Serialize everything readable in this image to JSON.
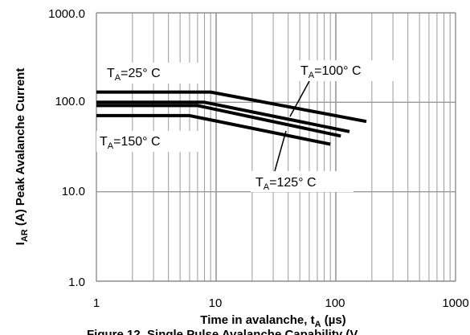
{
  "chart_data": {
    "type": "line",
    "x_scale": "log",
    "y_scale": "log",
    "xlim": [
      1,
      1000
    ],
    "ylim": [
      1.0,
      1000.0
    ],
    "grid": true,
    "legend": "none",
    "xlabel": {
      "main": "Time in avalanche, t",
      "sub": "A",
      "unit": " (µs)"
    },
    "ylabel": {
      "pre": "I",
      "sub": "AR",
      "main": " (A) Peak Avalanche Current"
    },
    "x_ticks": [
      "1",
      "10",
      "100",
      "1000"
    ],
    "y_ticks": [
      "1.0",
      "10.0",
      "100.0",
      "1000.0"
    ],
    "caption": "Figure 12. Single Pulse Avalanche Capability (V",
    "series": [
      {
        "id": "ta25",
        "x": [
          1,
          9,
          180
        ],
        "y": [
          130,
          130,
          61
        ]
      },
      {
        "id": "ta100",
        "x": [
          1,
          8,
          130
        ],
        "y": [
          100,
          100,
          47
        ]
      },
      {
        "id": "ta125",
        "x": [
          1,
          7,
          110
        ],
        "y": [
          92,
          92,
          42
        ]
      },
      {
        "id": "ta150",
        "x": [
          1,
          6,
          90
        ],
        "y": [
          71,
          71,
          34
        ]
      }
    ],
    "annotations": [
      {
        "id": "ta25",
        "pre": "T",
        "sub": "A",
        "text": "=25° C"
      },
      {
        "id": "ta100",
        "pre": "T",
        "sub": "A",
        "text": "=100° C"
      },
      {
        "id": "ta150",
        "pre": "T",
        "sub": "A",
        "text": "=150° C"
      },
      {
        "id": "ta125",
        "pre": "T",
        "sub": "A",
        "text": "=125° C"
      }
    ],
    "colors": {
      "series": "#000000",
      "grid": "#999999",
      "plot_border": "#888888"
    }
  }
}
